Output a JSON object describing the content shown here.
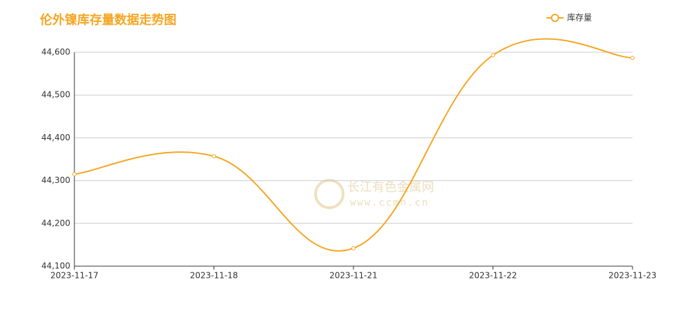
{
  "chart_data": {
    "type": "line",
    "title": "伦外镍库存量数据走势图",
    "categories": [
      "2023-11-17",
      "2023-11-18",
      "2023-11-21",
      "2023-11-22",
      "2023-11-23"
    ],
    "series": [
      {
        "name": "库存量",
        "color": "#f5a623",
        "values": [
          44315,
          44357,
          44142,
          44593,
          44587
        ]
      }
    ],
    "ylim": [
      44100,
      44600
    ],
    "yticks": [
      {
        "value": 44100,
        "label": "44,100"
      },
      {
        "value": 44200,
        "label": "44,200"
      },
      {
        "value": 44300,
        "label": "44,300"
      },
      {
        "value": 44400,
        "label": "44,400"
      },
      {
        "value": 44500,
        "label": "44,500"
      },
      {
        "value": 44600,
        "label": "44,600"
      }
    ],
    "grid": true,
    "legend": "top-right",
    "watermark": {
      "name": "长江有色金属网",
      "url": "www.ccmn.cn"
    }
  }
}
